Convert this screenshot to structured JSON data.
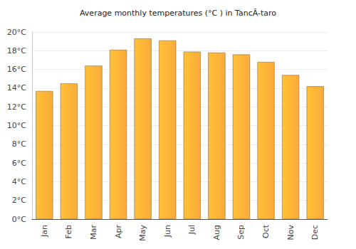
{
  "chart_data": {
    "type": "bar",
    "title": "Average monthly temperatures (°C ) in TancĂ-taro",
    "categories": [
      "Jan",
      "Feb",
      "Mar",
      "Apr",
      "May",
      "Jun",
      "Jul",
      "Aug",
      "Sep",
      "Oct",
      "Nov",
      "Dec"
    ],
    "values": [
      13.7,
      14.5,
      16.4,
      18.1,
      19.3,
      19.1,
      17.9,
      17.8,
      17.6,
      16.8,
      15.4,
      14.2
    ],
    "color": "#fba730",
    "ylim": [
      0,
      20
    ],
    "yticks": [
      {
        "value": 0,
        "label": "0°C"
      },
      {
        "value": 2,
        "label": "2°C"
      },
      {
        "value": 4,
        "label": "4°C"
      },
      {
        "value": 6,
        "label": "6°C"
      },
      {
        "value": 8,
        "label": "8°C"
      },
      {
        "value": 10,
        "label": "10°C"
      },
      {
        "value": 12,
        "label": "12°C"
      },
      {
        "value": 14,
        "label": "14°C"
      },
      {
        "value": 16,
        "label": "16°C"
      },
      {
        "value": 18,
        "label": "18°C"
      },
      {
        "value": 20,
        "label": "20°C"
      }
    ],
    "grid": true
  }
}
